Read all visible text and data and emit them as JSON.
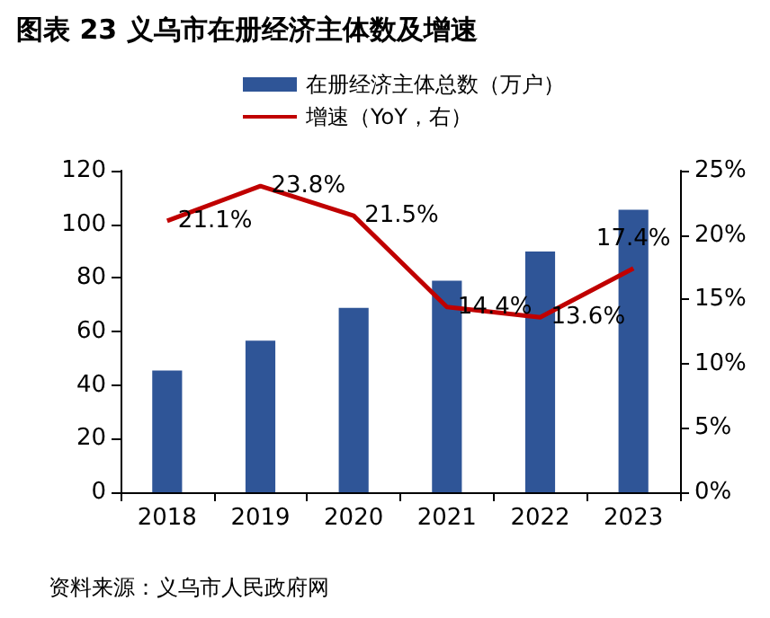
{
  "chart_data": {
    "type": "bar",
    "title": "图表 23 义乌市在册经济主体数及增速",
    "categories": [
      "2018",
      "2019",
      "2020",
      "2021",
      "2022",
      "2023"
    ],
    "series": [
      {
        "name": "在册经济主体总数（万户）",
        "color": "#2f5597",
        "values": [
          45.4,
          56.6,
          68.8,
          78.9,
          89.8,
          105.4
        ]
      },
      {
        "name": "增速（YoY，右）",
        "type": "line",
        "axis": "y2",
        "color": "#c00000",
        "values": [
          21.1,
          23.8,
          21.5,
          14.4,
          13.6,
          17.4
        ],
        "value_labels": [
          "21.1%",
          "23.8%",
          "21.5%",
          "14.4%",
          "13.6%",
          "17.4%"
        ]
      }
    ],
    "ylim": [
      0,
      120
    ],
    "yticks": [
      0,
      20,
      40,
      60,
      80,
      100,
      120
    ],
    "y2lim": [
      0,
      25
    ],
    "y2ticks": [
      {
        "value": 0,
        "label": "0%"
      },
      {
        "value": 5,
        "label": "5%"
      },
      {
        "value": 10,
        "label": "10%"
      },
      {
        "value": 15,
        "label": "15%"
      },
      {
        "value": 20,
        "label": "20%"
      },
      {
        "value": 25,
        "label": "25%"
      }
    ],
    "grid": false,
    "legend": "top",
    "marker": "none",
    "line_style": "solid",
    "annotations": [
      "资料来源：义乌市人民政府网"
    ]
  }
}
